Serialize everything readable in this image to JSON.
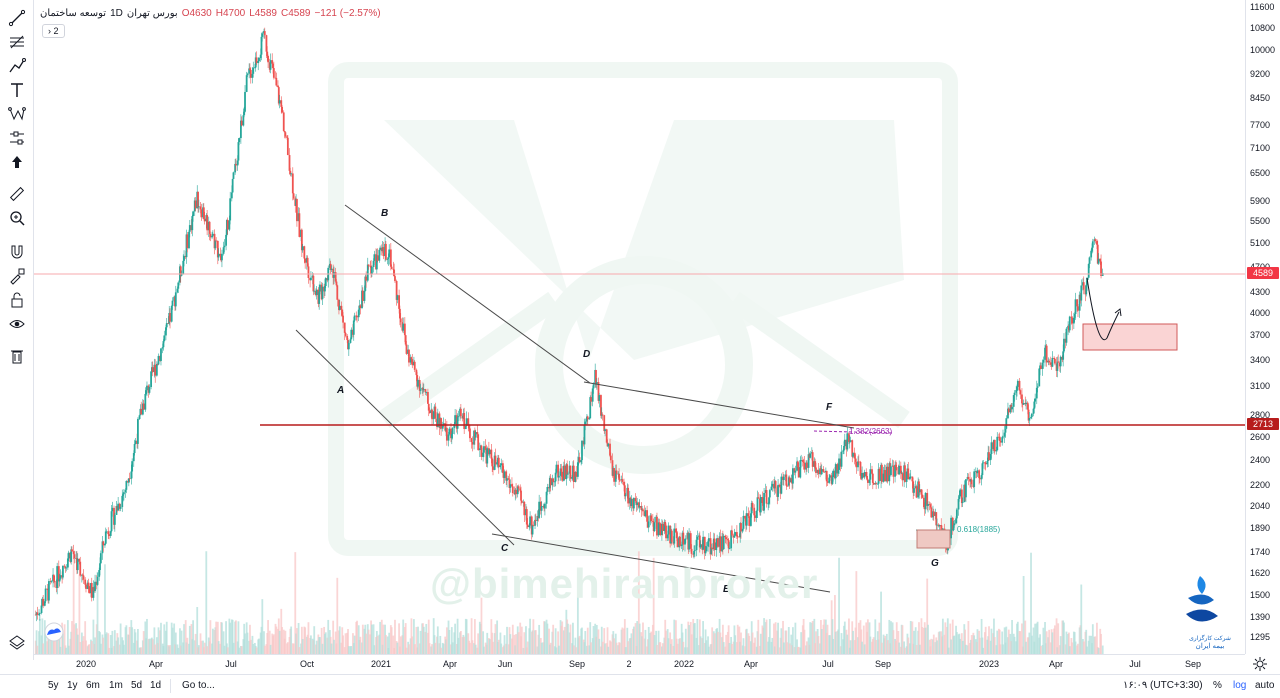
{
  "legend": {
    "symbol": "توسعه ساختمان",
    "interval": "1D",
    "exchange": "بورس تهران",
    "open": "O4630",
    "high": "H4700",
    "low": "L4589",
    "close": "C4589",
    "change": "−121 (−2.57%)",
    "collapse_count": "2"
  },
  "price_axis": {
    "ticks": [
      "11600",
      "10800",
      "10000",
      "9200",
      "8450",
      "7700",
      "7100",
      "6500",
      "5900",
      "5500",
      "5100",
      "4700",
      "4300",
      "4000",
      "3700",
      "3400",
      "3100",
      "2800",
      "2600",
      "2400",
      "2200",
      "2040",
      "1890",
      "1740",
      "1620",
      "1500",
      "1390",
      "1295"
    ],
    "current_price": "4589",
    "level_price": "2713"
  },
  "time_axis": {
    "labels": [
      "2020",
      "Apr",
      "Jul",
      "Oct",
      "2021",
      "Apr",
      "Jun",
      "Sep",
      "2",
      "2022",
      "Apr",
      "Jul",
      "Sep",
      "2023",
      "Apr",
      "Jul",
      "Sep"
    ]
  },
  "annotations": {
    "wave_labels": [
      "A",
      "B",
      "C",
      "D",
      "E",
      "F",
      "G"
    ],
    "fib_upper": "1.382(2663)",
    "fib_lower": "0.618(1885)",
    "watermark": "@bimehiranbroker"
  },
  "bottom_bar": {
    "ranges": [
      "5y",
      "1y",
      "6m",
      "1m",
      "5d",
      "1d"
    ],
    "goto": "Go to...",
    "clock": "۱۶:۰۹ (UTC+3:30)",
    "percent": "%",
    "log": "log",
    "auto": "auto"
  },
  "brand": {
    "line1": "شرکت کارگزاری",
    "line2": "بیمه ایران"
  },
  "colors": {
    "up": "#26a69a",
    "down": "#ef5350",
    "level": "#b71c1c",
    "current": "#f23645",
    "accent": "#2962ff"
  },
  "icons": [
    "trend-line-icon",
    "fib-icon",
    "path-icon",
    "text-icon",
    "pattern-icon",
    "prediction-icon",
    "arrow-icon",
    "ruler-icon",
    "zoom-icon",
    "magnet-icon",
    "lock-drawing-icon",
    "lock-icon",
    "eye-icon",
    "trash-icon",
    "layers-icon"
  ],
  "chart_data": {
    "type": "candlestick",
    "symbol": "توسعه ساختمان",
    "interval": "1D",
    "y_scale": "log",
    "current_price": 4589,
    "horizontal_level": 2713,
    "path": [
      [
        "2019-11-01",
        1400
      ],
      [
        "2019-12-15",
        1750
      ],
      [
        "2020-01-10",
        1500
      ],
      [
        "2020-01-25",
        1850
      ],
      [
        "2020-02-20",
        2200
      ],
      [
        "2020-03-10",
        2900
      ],
      [
        "2020-04-10",
        3800
      ],
      [
        "2020-05-15",
        6000
      ],
      [
        "2020-06-15",
        4800
      ],
      [
        "2020-07-15",
        9000
      ],
      [
        "2020-08-05",
        10400
      ],
      [
        "2020-08-25",
        8200
      ],
      [
        "2020-09-20",
        5000
      ],
      [
        "2020-10-10",
        4200
      ],
      [
        "2020-10-25",
        4800
      ],
      [
        "2020-11-15",
        3500
      ],
      [
        "2020-12-10",
        4700
      ],
      [
        "2021-01-03",
        5000
      ],
      [
        "2021-01-25",
        3500
      ],
      [
        "2021-02-20",
        2900
      ],
      [
        "2021-03-15",
        2600
      ],
      [
        "2021-04-01",
        2800
      ],
      [
        "2021-04-20",
        2550
      ],
      [
        "2021-05-20",
        2300
      ],
      [
        "2021-06-10",
        2100
      ],
      [
        "2021-06-25",
        1900
      ],
      [
        "2021-07-25",
        2300
      ],
      [
        "2021-08-20",
        2300
      ],
      [
        "2021-09-10",
        3200
      ],
      [
        "2021-10-01",
        2300
      ],
      [
        "2021-11-01",
        2000
      ],
      [
        "2021-12-10",
        1850
      ],
      [
        "2022-01-10",
        1780
      ],
      [
        "2022-02-20",
        1800
      ],
      [
        "2022-03-20",
        2000
      ],
      [
        "2022-05-01",
        2250
      ],
      [
        "2022-06-01",
        2400
      ],
      [
        "2022-06-25",
        2200
      ],
      [
        "2022-07-15",
        2600
      ],
      [
        "2022-08-01",
        2250
      ],
      [
        "2022-08-25",
        2300
      ],
      [
        "2022-09-20",
        2300
      ],
      [
        "2022-10-20",
        2050
      ],
      [
        "2022-11-10",
        1790
      ],
      [
        "2022-12-01",
        2150
      ],
      [
        "2022-12-25",
        2350
      ],
      [
        "2023-01-15",
        2600
      ],
      [
        "2023-02-05",
        3100
      ],
      [
        "2023-02-20",
        2800
      ],
      [
        "2023-03-10",
        3500
      ],
      [
        "2023-03-25",
        3300
      ],
      [
        "2023-04-10",
        3900
      ],
      [
        "2023-05-01",
        4500
      ],
      [
        "2023-05-10",
        5300
      ],
      [
        "2023-05-15",
        4700
      ],
      [
        "2023-05-20",
        4589
      ]
    ]
  }
}
